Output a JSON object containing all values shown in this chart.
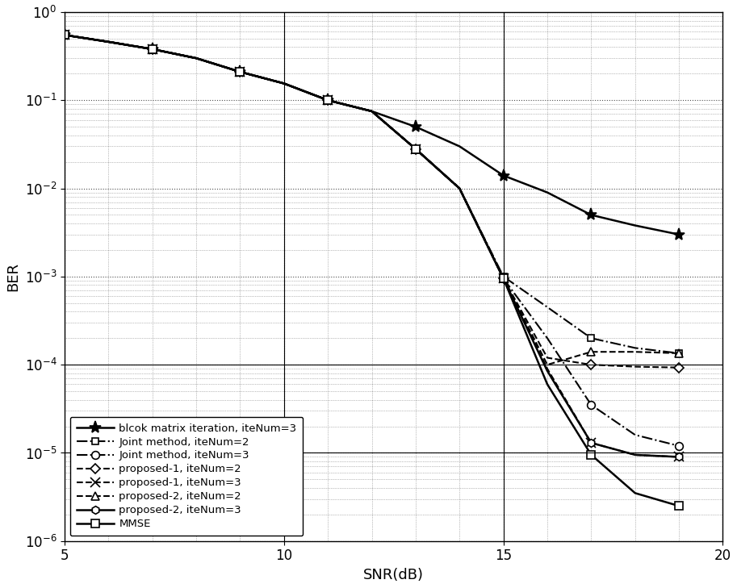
{
  "title": "",
  "xlabel": "SNR(dB)",
  "ylabel": "BER",
  "xlim": [
    5,
    20
  ],
  "ylim_log": [
    -6,
    0
  ],
  "snr": [
    5,
    6,
    7,
    8,
    9,
    10,
    11,
    12,
    13,
    14,
    15,
    16,
    17,
    18,
    19
  ],
  "block_matrix": {
    "label": "blcok matrix iteration, iteNum=3",
    "linestyle": "-",
    "marker": "*",
    "color": "#000000",
    "linewidth": 1.8,
    "markersize": 11,
    "markevery": 2,
    "ber": [
      0.55,
      0.46,
      0.38,
      0.3,
      0.21,
      0.155,
      0.1,
      0.075,
      0.05,
      0.03,
      0.014,
      0.009,
      0.005,
      0.0038,
      0.003
    ]
  },
  "joint_ite2": {
    "label": "Joint method, iteNum=2",
    "linestyle": "-.",
    "marker": "s",
    "color": "#000000",
    "linewidth": 1.5,
    "markersize": 6,
    "markevery": 2,
    "ber": [
      0.55,
      0.46,
      0.38,
      0.3,
      0.21,
      0.155,
      0.1,
      0.075,
      0.028,
      0.01,
      0.001,
      0.00045,
      0.0002,
      0.000155,
      0.000135
    ]
  },
  "joint_ite3": {
    "label": "Joint method, iteNum=3",
    "linestyle": "-.",
    "marker": "o",
    "color": "#000000",
    "linewidth": 1.5,
    "markersize": 7,
    "markevery": 2,
    "ber": [
      0.55,
      0.46,
      0.38,
      0.3,
      0.21,
      0.155,
      0.1,
      0.075,
      0.028,
      0.01,
      0.00095,
      0.0002,
      3.5e-05,
      1.6e-05,
      1.2e-05
    ]
  },
  "proposed1_ite2": {
    "label": "proposed-1, iteNum=2",
    "linestyle": "--",
    "marker": "D",
    "color": "#000000",
    "linewidth": 1.5,
    "markersize": 6,
    "markevery": 2,
    "ber": [
      0.55,
      0.46,
      0.38,
      0.3,
      0.21,
      0.155,
      0.1,
      0.075,
      0.028,
      0.01,
      0.00095,
      0.00012,
      0.0001,
      9.5e-05,
      9.3e-05
    ]
  },
  "proposed1_ite3": {
    "label": "proposed-1, iteNum=3",
    "linestyle": "--",
    "marker": "x",
    "color": "#000000",
    "linewidth": 1.5,
    "markersize": 9,
    "markevery": 2,
    "ber": [
      0.55,
      0.46,
      0.38,
      0.3,
      0.21,
      0.155,
      0.1,
      0.075,
      0.028,
      0.01,
      0.00095,
      9e-05,
      1.3e-05,
      9.5e-06,
      9e-06
    ]
  },
  "proposed2_ite2": {
    "label": "proposed-2, iteNum=2",
    "linestyle": "--",
    "marker": "^",
    "color": "#000000",
    "linewidth": 1.5,
    "markersize": 7,
    "markevery": 2,
    "ber": [
      0.55,
      0.46,
      0.38,
      0.3,
      0.21,
      0.155,
      0.1,
      0.075,
      0.028,
      0.01,
      0.00095,
      0.0001,
      0.00014,
      0.00014,
      0.000135
    ]
  },
  "proposed2_ite3": {
    "label": "proposed-2, iteNum=3",
    "linestyle": "-",
    "marker": "h",
    "color": "#000000",
    "linewidth": 1.8,
    "markersize": 7,
    "markevery": 2,
    "ber": [
      0.55,
      0.46,
      0.38,
      0.3,
      0.21,
      0.155,
      0.1,
      0.075,
      0.028,
      0.01,
      0.00095,
      8.5e-05,
      1.3e-05,
      9.5e-06,
      9e-06
    ]
  },
  "mmse": {
    "label": "MMSE",
    "linestyle": "-",
    "marker": "s",
    "color": "#000000",
    "linewidth": 1.8,
    "markersize": 7,
    "markevery": 2,
    "ber": [
      0.55,
      0.46,
      0.38,
      0.3,
      0.21,
      0.155,
      0.1,
      0.075,
      0.028,
      0.01,
      0.00095,
      6e-05,
      9.5e-06,
      3.5e-06,
      2.5e-06
    ]
  }
}
